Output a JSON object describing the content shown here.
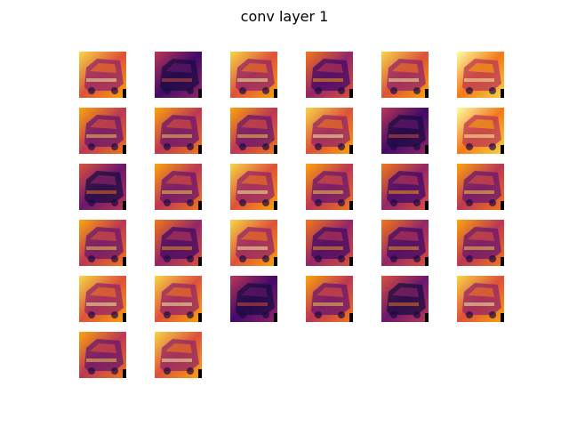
{
  "title": "conv layer 1"
}
